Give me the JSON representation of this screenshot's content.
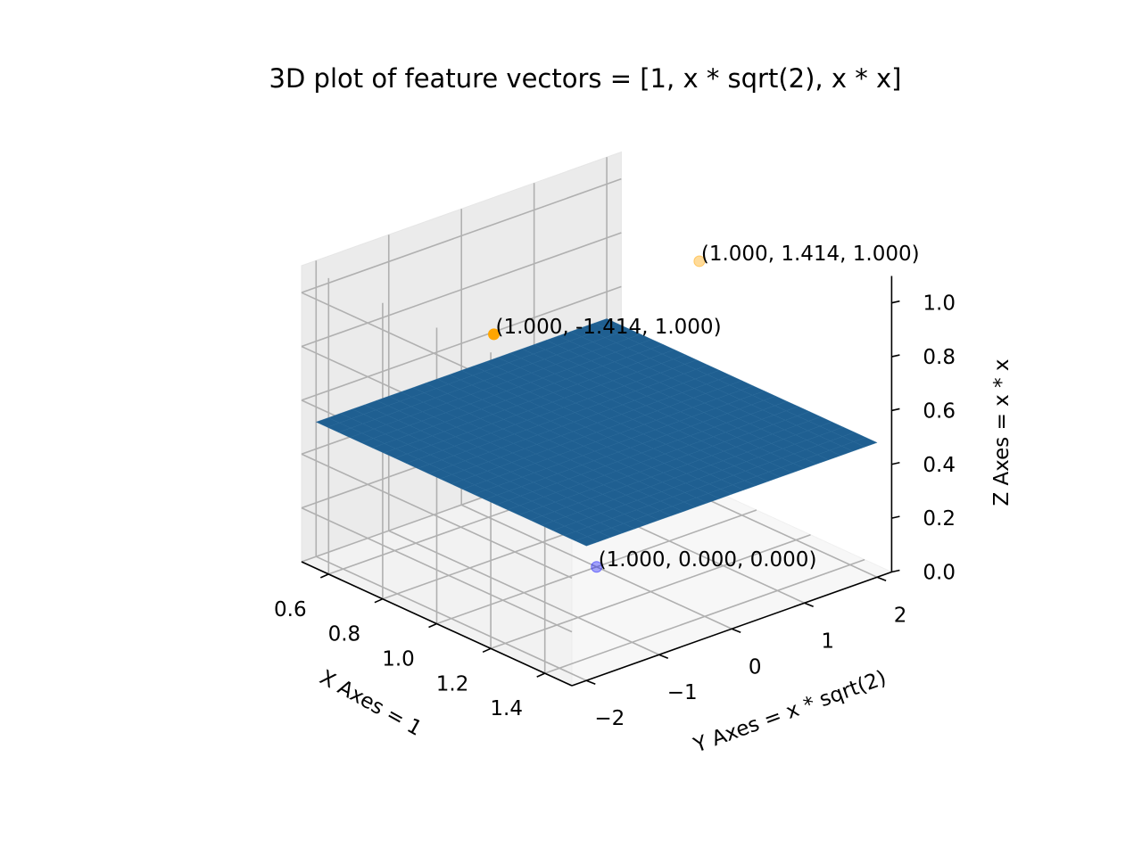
{
  "chart_data": {
    "type": "scatter",
    "projection": "3d",
    "title": "3D plot of feature vectors = [1, x * sqrt(2), x * x]",
    "xlabel": "X Axes = 1",
    "ylabel": "Y Axes = x * sqrt(2)",
    "zlabel": "Z Axes = x * x",
    "xlim": [
      0.5,
      1.5
    ],
    "ylim": [
      -2.2,
      2.2
    ],
    "zlim": [
      0.0,
      1.1
    ],
    "grid": true,
    "x_ticks": [
      "0.6",
      "0.8",
      "1.0",
      "1.2",
      "1.4"
    ],
    "y_ticks": [
      "−2",
      "−1",
      "0",
      "1",
      "2"
    ],
    "z_ticks": [
      "0.0",
      "0.2",
      "0.4",
      "0.6",
      "0.8",
      "1.0"
    ],
    "surface": {
      "color": "#1f5f91",
      "z": 0.5,
      "x_range": [
        0.5,
        1.5
      ],
      "y_range": [
        -2.0,
        2.0
      ]
    },
    "points": [
      {
        "x": 1.0,
        "y": -1.414,
        "z": 1.0,
        "label": "(1.000, -1.414, 1.000)",
        "color": "#ffa500",
        "alpha": 1.0
      },
      {
        "x": 1.0,
        "y": 1.414,
        "z": 1.0,
        "label": "(1.000, 1.414, 1.000)",
        "color": "#ffa500",
        "alpha": 0.4
      },
      {
        "x": 1.0,
        "y": 0.0,
        "z": 0.0,
        "label": "(1.000, 0.000, 0.000)",
        "color": "#0000ff",
        "alpha": 0.35
      }
    ],
    "colors": {
      "pane_back": "#ebebeb",
      "pane_side": "#f2f2f2",
      "pane_floor": "#f7f7f7",
      "grid": "#b0b0b0"
    }
  }
}
